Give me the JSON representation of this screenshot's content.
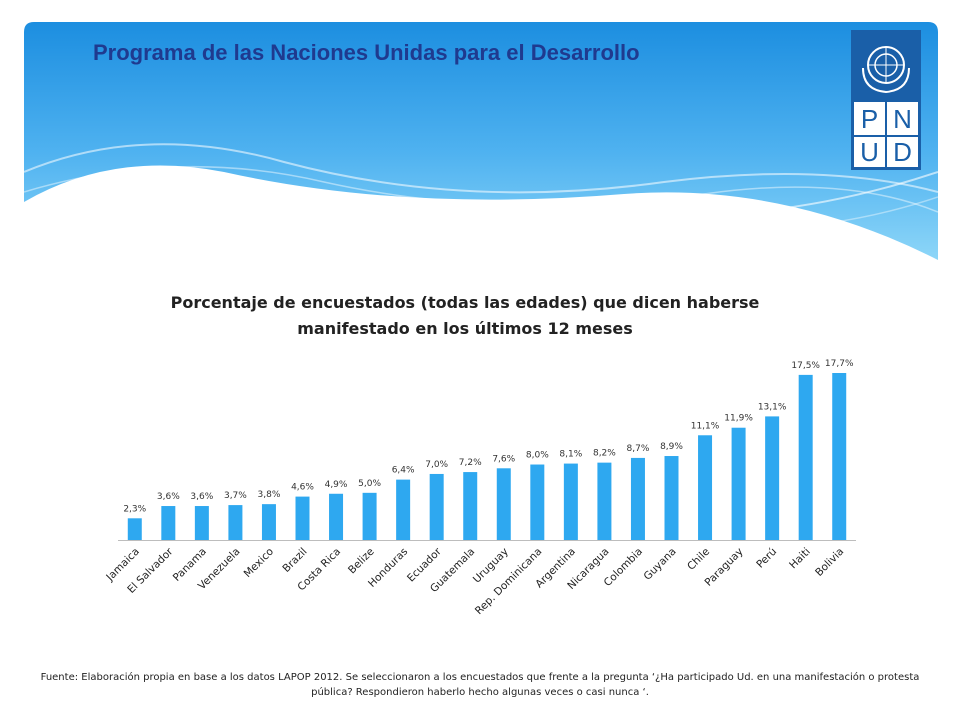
{
  "header": {
    "org_title": "Programa de las Naciones Unidas para el Desarrollo",
    "logo_letters": [
      "P",
      "N",
      "U",
      "D"
    ]
  },
  "colors": {
    "banner_top": "#1c8ee0",
    "banner_bottom": "#6cc8f5",
    "bar": "#2ea8f0",
    "title": "#1f3a8f",
    "logo": "#1a5fa8"
  },
  "chart_data": {
    "type": "bar",
    "title": "Porcentaje de encuestados (todas las edades) que dicen haberse manifestado en los últimos 12 meses",
    "categories": [
      "Jamaica",
      "El Salvador",
      "Panama",
      "Venezuela",
      "Mexico",
      "Brazil",
      "Costa Rica",
      "Belize",
      "Honduras",
      "Ecuador",
      "Guatemala",
      "Uruguay",
      "Rep. Dominicana",
      "Argentina",
      "Nicaragua",
      "Colombia",
      "Guyana",
      "Chile",
      "Paraguay",
      "Perú",
      "Haiti",
      "Bolivia"
    ],
    "values": [
      2.3,
      3.6,
      3.6,
      3.7,
      3.8,
      4.6,
      4.9,
      5.0,
      6.4,
      7.0,
      7.2,
      7.6,
      8.0,
      8.1,
      8.2,
      8.7,
      8.9,
      11.1,
      11.9,
      13.1,
      17.5,
      17.7
    ],
    "value_labels": [
      "2,3%",
      "3,6%",
      "3,6%",
      "3,7%",
      "3,8%",
      "4,6%",
      "4,9%",
      "5,0%",
      "6,4%",
      "7,0%",
      "7,2%",
      "7,6%",
      "8,0%",
      "8,1%",
      "8,2%",
      "8,7%",
      "8,9%",
      "11,1%",
      "11,9%",
      "13,1%",
      "17,5%",
      "17,7%"
    ],
    "xlabel": "",
    "ylabel": "",
    "ylim": [
      0,
      17.7
    ],
    "grid": false,
    "legend": "none"
  },
  "footer": {
    "source_note": "Fuente: Elaboración propia en base a los datos LAPOP 2012. Se seleccionaron a los encuestados que frente a la pregunta ‘¿Ha participado Ud. en una manifestación o protesta pública? Respondieron haberlo hecho algunas veces o casi nunca ‘."
  }
}
